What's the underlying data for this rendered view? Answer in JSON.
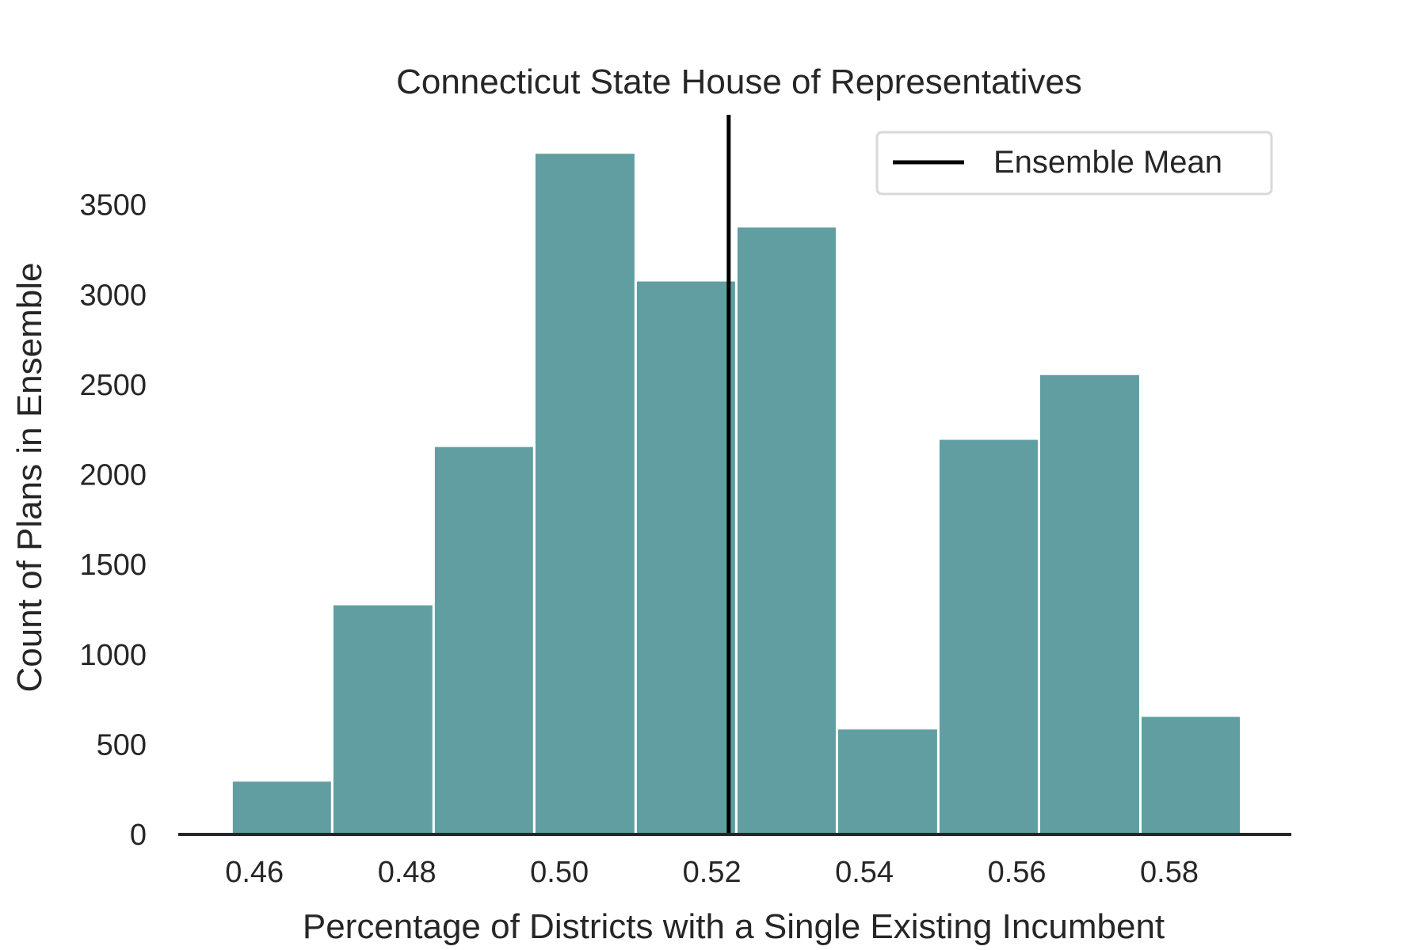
{
  "chart_data": {
    "type": "bar",
    "title": "Connecticut State House of Representatives",
    "xlabel": "Percentage of Districts with a Single Existing Incumbent",
    "ylabel": "Count of Plans in Ensemble",
    "xlim": [
      0.45,
      0.596
    ],
    "ylim": [
      0,
      4000
    ],
    "bin_edges": [
      0.457,
      0.4702,
      0.4835,
      0.4967,
      0.51,
      0.5232,
      0.5364,
      0.5497,
      0.5629,
      0.5762,
      0.5894
    ],
    "values": [
      300,
      1280,
      2160,
      3790,
      3080,
      3380,
      590,
      2200,
      2560,
      660
    ],
    "x_ticks": [
      "0.46",
      "0.48",
      "0.50",
      "0.52",
      "0.54",
      "0.56",
      "0.58"
    ],
    "y_ticks": [
      "0",
      "500",
      "1000",
      "1500",
      "2000",
      "2500",
      "3000",
      "3500"
    ],
    "mean_line": {
      "x": 0.5222,
      "label": "Ensemble Mean"
    },
    "legend_position": "top-right",
    "grid": false,
    "colors": {
      "bar": "#619ea1",
      "bar_edge": "#ffffff",
      "mean_line": "#000000",
      "axis": "#262626"
    }
  }
}
